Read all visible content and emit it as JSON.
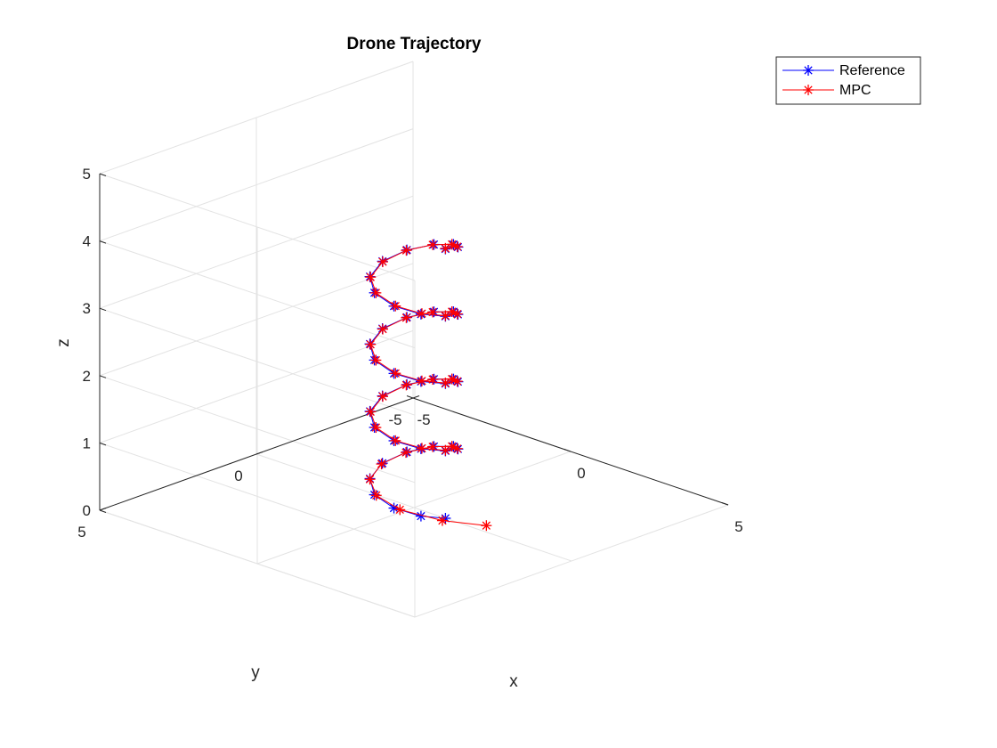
{
  "chart_data": {
    "type": "line",
    "projection": "3d",
    "title": "Drone Trajectory",
    "xlabel": "x",
    "ylabel": "y",
    "zlabel": "z",
    "xlim": [
      -5,
      5
    ],
    "ylim": [
      -5,
      5
    ],
    "zlim": [
      0,
      5
    ],
    "xticks": [
      "-5",
      "0",
      "5"
    ],
    "yticks": [
      "-5",
      "0",
      "5"
    ],
    "zticks": [
      "0",
      "1",
      "2",
      "3",
      "4",
      "5"
    ],
    "grid": true,
    "legend_location": "top-right",
    "marker": "asterisk",
    "series": [
      {
        "name": "Reference",
        "color": "#0000ff",
        "points": [
          [
            1.0,
            0.0,
            0.0
          ],
          [
            0.81,
            0.59,
            0.1
          ],
          [
            0.31,
            0.95,
            0.2
          ],
          [
            -0.31,
            0.95,
            0.3
          ],
          [
            -0.81,
            0.59,
            0.4
          ],
          [
            -1.0,
            0.0,
            0.5
          ],
          [
            -0.81,
            -0.59,
            0.6
          ],
          [
            -0.31,
            -0.95,
            0.7
          ],
          [
            0.31,
            -0.95,
            0.8
          ],
          [
            0.81,
            -0.59,
            0.9
          ],
          [
            1.0,
            0.0,
            1.0
          ],
          [
            0.81,
            0.59,
            1.1
          ],
          [
            0.31,
            0.95,
            1.2
          ],
          [
            -0.31,
            0.95,
            1.3
          ],
          [
            -0.81,
            0.59,
            1.4
          ],
          [
            -1.0,
            0.0,
            1.5
          ],
          [
            -0.81,
            -0.59,
            1.6
          ],
          [
            -0.31,
            -0.95,
            1.7
          ],
          [
            0.31,
            -0.95,
            1.8
          ],
          [
            0.81,
            -0.59,
            1.9
          ],
          [
            1.0,
            0.0,
            2.0
          ],
          [
            0.81,
            0.59,
            2.1
          ],
          [
            0.31,
            0.95,
            2.2
          ],
          [
            -0.31,
            0.95,
            2.3
          ],
          [
            -0.81,
            0.59,
            2.4
          ],
          [
            -1.0,
            0.0,
            2.5
          ],
          [
            -0.81,
            -0.59,
            2.6
          ],
          [
            -0.31,
            -0.95,
            2.7
          ],
          [
            0.31,
            -0.95,
            2.8
          ],
          [
            0.81,
            -0.59,
            2.9
          ],
          [
            1.0,
            0.0,
            3.0
          ],
          [
            0.81,
            0.59,
            3.1
          ],
          [
            0.31,
            0.95,
            3.2
          ],
          [
            -0.31,
            0.95,
            3.3
          ],
          [
            -0.81,
            0.59,
            3.4
          ],
          [
            -1.0,
            0.0,
            3.5
          ],
          [
            -0.81,
            -0.59,
            3.6
          ],
          [
            -0.31,
            -0.95,
            3.7
          ],
          [
            0.31,
            -0.95,
            3.8
          ],
          [
            0.81,
            -0.59,
            3.9
          ],
          [
            1.0,
            0.0,
            4.0
          ]
        ]
      },
      {
        "name": "MPC",
        "color": "#ff0000",
        "points": [
          [
            2.0,
            -0.3,
            0.0
          ],
          [
            1.3,
            0.4,
            0.08
          ],
          [
            0.45,
            0.9,
            0.19
          ],
          [
            -0.25,
            0.95,
            0.3
          ],
          [
            -0.78,
            0.62,
            0.4
          ],
          [
            -0.98,
            0.05,
            0.5
          ],
          [
            -0.8,
            -0.55,
            0.6
          ],
          [
            -0.32,
            -0.92,
            0.7
          ],
          [
            0.28,
            -0.93,
            0.8
          ],
          [
            0.78,
            -0.6,
            0.9
          ],
          [
            0.97,
            -0.03,
            1.0
          ],
          [
            0.8,
            0.55,
            1.1
          ],
          [
            0.33,
            0.92,
            1.2
          ],
          [
            -0.28,
            0.93,
            1.3
          ],
          [
            -0.78,
            0.6,
            1.4
          ],
          [
            -0.97,
            0.02,
            1.5
          ],
          [
            -0.8,
            -0.56,
            1.6
          ],
          [
            -0.32,
            -0.92,
            1.7
          ],
          [
            0.28,
            -0.93,
            1.8
          ],
          [
            0.78,
            -0.6,
            1.9
          ],
          [
            0.97,
            -0.03,
            2.0
          ],
          [
            0.8,
            0.55,
            2.1
          ],
          [
            0.33,
            0.92,
            2.2
          ],
          [
            -0.28,
            0.93,
            2.3
          ],
          [
            -0.78,
            0.6,
            2.4
          ],
          [
            -0.97,
            0.02,
            2.5
          ],
          [
            -0.8,
            -0.56,
            2.6
          ],
          [
            -0.32,
            -0.92,
            2.7
          ],
          [
            0.28,
            -0.93,
            2.8
          ],
          [
            0.78,
            -0.6,
            2.9
          ],
          [
            0.97,
            -0.03,
            3.0
          ],
          [
            0.8,
            0.55,
            3.1
          ],
          [
            0.33,
            0.92,
            3.2
          ],
          [
            -0.28,
            0.93,
            3.3
          ],
          [
            -0.78,
            0.6,
            3.4
          ],
          [
            -0.97,
            0.02,
            3.5
          ],
          [
            -0.8,
            -0.56,
            3.6
          ],
          [
            -0.32,
            -0.92,
            3.7
          ],
          [
            0.28,
            -0.93,
            3.8
          ],
          [
            0.78,
            -0.6,
            3.9
          ],
          [
            0.97,
            -0.03,
            4.0
          ]
        ]
      }
    ]
  }
}
